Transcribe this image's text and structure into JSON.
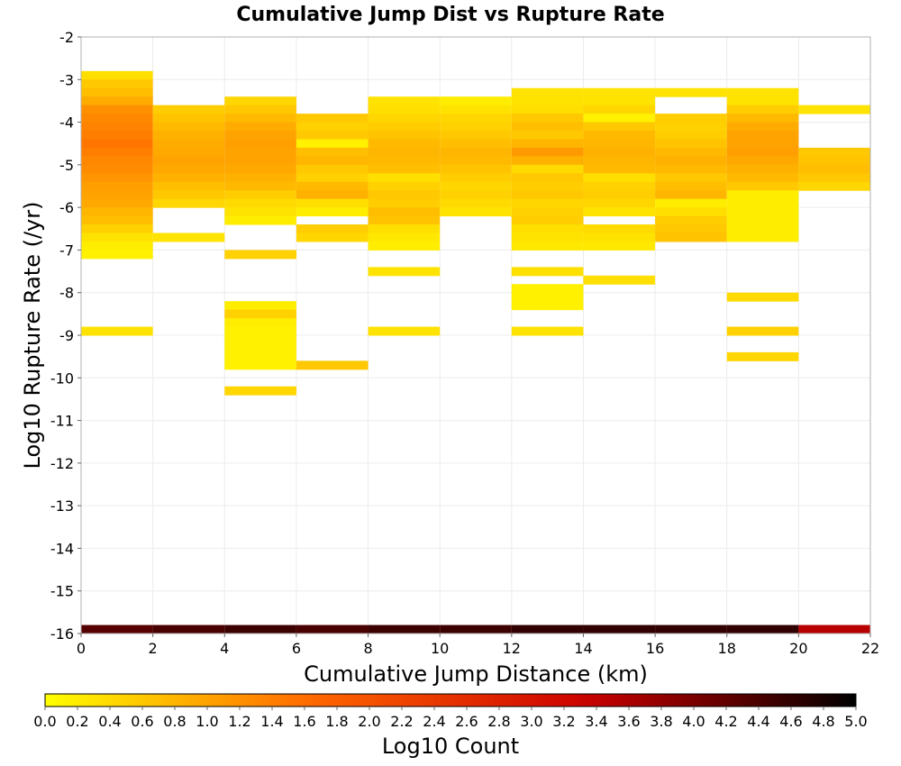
{
  "chart_data": {
    "type": "heatmap",
    "title": "Cumulative Jump Dist vs Rupture Rate",
    "xlabel": "Cumulative Jump Distance (km)",
    "ylabel": "Log10 Rupture Rate (/yr)",
    "xlim": [
      0,
      22
    ],
    "ylim": [
      -16,
      -2
    ],
    "x_ticks": [
      0,
      2,
      4,
      6,
      8,
      10,
      12,
      14,
      16,
      18,
      20,
      22
    ],
    "y_ticks": [
      -2,
      -3,
      -4,
      -5,
      -6,
      -7,
      -8,
      -9,
      -10,
      -11,
      -12,
      -13,
      -14,
      -15,
      -16
    ],
    "grid": true,
    "bin_width_x": 2,
    "bin_height_y": 0.2,
    "colorbar": {
      "label": "Log10 Count",
      "range": [
        0,
        5
      ],
      "ticks": [
        "0.0",
        "0.2",
        "0.4",
        "0.6",
        "0.8",
        "1.0",
        "1.2",
        "1.4",
        "1.6",
        "1.8",
        "2.0",
        "2.2",
        "2.4",
        "2.6",
        "2.8",
        "3.0",
        "3.2",
        "3.4",
        "3.6",
        "3.8",
        "4.0",
        "4.2",
        "4.4",
        "4.6",
        "4.8",
        "5.0"
      ],
      "colors": [
        "#ffff00",
        "#ff6600",
        "#cc0000",
        "#000000"
      ]
    },
    "cells_note": "each cell: x = bin left edge (km), y = bin bottom (log10 rate), v = log10 count",
    "cells": [
      {
        "x": 0,
        "y": -3.0,
        "v": 0.35
      },
      {
        "x": 0,
        "y": -3.2,
        "v": 0.6
      },
      {
        "x": 0,
        "y": -3.4,
        "v": 0.7
      },
      {
        "x": 0,
        "y": -3.6,
        "v": 0.9
      },
      {
        "x": 0,
        "y": -3.8,
        "v": 1.2
      },
      {
        "x": 0,
        "y": -4.0,
        "v": 1.3
      },
      {
        "x": 0,
        "y": -4.2,
        "v": 1.35
      },
      {
        "x": 0,
        "y": -4.4,
        "v": 1.4
      },
      {
        "x": 0,
        "y": -4.6,
        "v": 1.5
      },
      {
        "x": 0,
        "y": -4.8,
        "v": 1.4
      },
      {
        "x": 0,
        "y": -5.0,
        "v": 1.3
      },
      {
        "x": 0,
        "y": -5.2,
        "v": 1.25
      },
      {
        "x": 0,
        "y": -5.4,
        "v": 1.15
      },
      {
        "x": 0,
        "y": -5.6,
        "v": 1.05
      },
      {
        "x": 0,
        "y": -5.8,
        "v": 1.0
      },
      {
        "x": 0,
        "y": -6.0,
        "v": 0.95
      },
      {
        "x": 0,
        "y": -6.2,
        "v": 0.8
      },
      {
        "x": 0,
        "y": -6.4,
        "v": 0.7
      },
      {
        "x": 0,
        "y": -6.6,
        "v": 0.5
      },
      {
        "x": 0,
        "y": -6.8,
        "v": 0.3
      },
      {
        "x": 0,
        "y": -7.0,
        "v": 0.2
      },
      {
        "x": 0,
        "y": -7.2,
        "v": 0.15
      },
      {
        "x": 0,
        "y": -9.0,
        "v": 0.3
      },
      {
        "x": 2,
        "y": -3.8,
        "v": 0.55
      },
      {
        "x": 2,
        "y": -4.0,
        "v": 0.65
      },
      {
        "x": 2,
        "y": -4.2,
        "v": 0.75
      },
      {
        "x": 2,
        "y": -4.4,
        "v": 0.85
      },
      {
        "x": 2,
        "y": -4.6,
        "v": 0.9
      },
      {
        "x": 2,
        "y": -4.8,
        "v": 0.95
      },
      {
        "x": 2,
        "y": -5.0,
        "v": 1.0
      },
      {
        "x": 2,
        "y": -5.2,
        "v": 0.95
      },
      {
        "x": 2,
        "y": -5.4,
        "v": 0.85
      },
      {
        "x": 2,
        "y": -5.6,
        "v": 0.7
      },
      {
        "x": 2,
        "y": -5.8,
        "v": 0.6
      },
      {
        "x": 2,
        "y": -6.0,
        "v": 0.45
      },
      {
        "x": 2,
        "y": -6.8,
        "v": 0.3
      },
      {
        "x": 4,
        "y": -3.6,
        "v": 0.45
      },
      {
        "x": 4,
        "y": -3.8,
        "v": 0.6
      },
      {
        "x": 4,
        "y": -4.0,
        "v": 0.75
      },
      {
        "x": 4,
        "y": -4.2,
        "v": 0.9
      },
      {
        "x": 4,
        "y": -4.4,
        "v": 1.0
      },
      {
        "x": 4,
        "y": -4.6,
        "v": 1.05
      },
      {
        "x": 4,
        "y": -4.8,
        "v": 1.0
      },
      {
        "x": 4,
        "y": -5.0,
        "v": 1.0
      },
      {
        "x": 4,
        "y": -5.2,
        "v": 0.95
      },
      {
        "x": 4,
        "y": -5.4,
        "v": 0.85
      },
      {
        "x": 4,
        "y": -5.6,
        "v": 0.75
      },
      {
        "x": 4,
        "y": -5.8,
        "v": 0.55
      },
      {
        "x": 4,
        "y": -6.0,
        "v": 0.4
      },
      {
        "x": 4,
        "y": -6.2,
        "v": 0.3
      },
      {
        "x": 4,
        "y": -6.4,
        "v": 0.2
      },
      {
        "x": 4,
        "y": -7.2,
        "v": 0.5
      },
      {
        "x": 4,
        "y": -8.4,
        "v": 0.2
      },
      {
        "x": 4,
        "y": -8.6,
        "v": 0.5
      },
      {
        "x": 4,
        "y": -8.8,
        "v": 0.2
      },
      {
        "x": 4,
        "y": -9.0,
        "v": 0.15
      },
      {
        "x": 4,
        "y": -9.2,
        "v": 0.15
      },
      {
        "x": 4,
        "y": -9.4,
        "v": 0.15
      },
      {
        "x": 4,
        "y": -9.6,
        "v": 0.15
      },
      {
        "x": 4,
        "y": -9.8,
        "v": 0.15
      },
      {
        "x": 4,
        "y": -10.4,
        "v": 0.45
      },
      {
        "x": 6,
        "y": -4.0,
        "v": 0.6
      },
      {
        "x": 6,
        "y": -4.2,
        "v": 0.5
      },
      {
        "x": 6,
        "y": -4.4,
        "v": 0.6
      },
      {
        "x": 6,
        "y": -4.6,
        "v": 0.15
      },
      {
        "x": 6,
        "y": -4.8,
        "v": 0.7
      },
      {
        "x": 6,
        "y": -5.0,
        "v": 0.8
      },
      {
        "x": 6,
        "y": -5.2,
        "v": 0.6
      },
      {
        "x": 6,
        "y": -5.4,
        "v": 0.5
      },
      {
        "x": 6,
        "y": -5.6,
        "v": 0.75
      },
      {
        "x": 6,
        "y": -5.8,
        "v": 0.85
      },
      {
        "x": 6,
        "y": -6.0,
        "v": 0.35
      },
      {
        "x": 6,
        "y": -6.2,
        "v": 0.2
      },
      {
        "x": 6,
        "y": -6.6,
        "v": 0.55
      },
      {
        "x": 6,
        "y": -6.8,
        "v": 0.45
      },
      {
        "x": 6,
        "y": -9.8,
        "v": 0.6
      },
      {
        "x": 8,
        "y": -3.6,
        "v": 0.3
      },
      {
        "x": 8,
        "y": -3.8,
        "v": 0.35
      },
      {
        "x": 8,
        "y": -4.0,
        "v": 0.45
      },
      {
        "x": 8,
        "y": -4.2,
        "v": 0.55
      },
      {
        "x": 8,
        "y": -4.4,
        "v": 0.65
      },
      {
        "x": 8,
        "y": -4.6,
        "v": 0.75
      },
      {
        "x": 8,
        "y": -4.8,
        "v": 0.8
      },
      {
        "x": 8,
        "y": -5.0,
        "v": 0.75
      },
      {
        "x": 8,
        "y": -5.2,
        "v": 0.7
      },
      {
        "x": 8,
        "y": -5.4,
        "v": 0.35
      },
      {
        "x": 8,
        "y": -5.6,
        "v": 0.5
      },
      {
        "x": 8,
        "y": -5.8,
        "v": 0.6
      },
      {
        "x": 8,
        "y": -6.0,
        "v": 0.55
      },
      {
        "x": 8,
        "y": -6.2,
        "v": 0.7
      },
      {
        "x": 8,
        "y": -6.4,
        "v": 0.65
      },
      {
        "x": 8,
        "y": -6.6,
        "v": 0.35
      },
      {
        "x": 8,
        "y": -6.8,
        "v": 0.25
      },
      {
        "x": 8,
        "y": -7.0,
        "v": 0.2
      },
      {
        "x": 8,
        "y": -7.6,
        "v": 0.3
      },
      {
        "x": 8,
        "y": -9.0,
        "v": 0.3
      },
      {
        "x": 10,
        "y": -3.6,
        "v": 0.2
      },
      {
        "x": 10,
        "y": -3.8,
        "v": 0.3
      },
      {
        "x": 10,
        "y": -4.0,
        "v": 0.45
      },
      {
        "x": 10,
        "y": -4.2,
        "v": 0.5
      },
      {
        "x": 10,
        "y": -4.4,
        "v": 0.6
      },
      {
        "x": 10,
        "y": -4.6,
        "v": 0.7
      },
      {
        "x": 10,
        "y": -4.8,
        "v": 0.8
      },
      {
        "x": 10,
        "y": -5.0,
        "v": 0.75
      },
      {
        "x": 10,
        "y": -5.2,
        "v": 0.65
      },
      {
        "x": 10,
        "y": -5.4,
        "v": 0.55
      },
      {
        "x": 10,
        "y": -5.6,
        "v": 0.45
      },
      {
        "x": 10,
        "y": -5.8,
        "v": 0.5
      },
      {
        "x": 10,
        "y": -6.0,
        "v": 0.4
      },
      {
        "x": 10,
        "y": -6.2,
        "v": 0.3
      },
      {
        "x": 12,
        "y": -3.4,
        "v": 0.3
      },
      {
        "x": 12,
        "y": -3.6,
        "v": 0.3
      },
      {
        "x": 12,
        "y": -3.8,
        "v": 0.35
      },
      {
        "x": 12,
        "y": -4.0,
        "v": 0.6
      },
      {
        "x": 12,
        "y": -4.2,
        "v": 0.7
      },
      {
        "x": 12,
        "y": -4.4,
        "v": 0.6
      },
      {
        "x": 12,
        "y": -4.6,
        "v": 0.8
      },
      {
        "x": 12,
        "y": -4.8,
        "v": 1.1
      },
      {
        "x": 12,
        "y": -5.0,
        "v": 0.85
      },
      {
        "x": 12,
        "y": -5.2,
        "v": 0.4
      },
      {
        "x": 12,
        "y": -5.4,
        "v": 0.6
      },
      {
        "x": 12,
        "y": -5.6,
        "v": 0.55
      },
      {
        "x": 12,
        "y": -5.8,
        "v": 0.6
      },
      {
        "x": 12,
        "y": -6.0,
        "v": 0.45
      },
      {
        "x": 12,
        "y": -6.2,
        "v": 0.5
      },
      {
        "x": 12,
        "y": -6.4,
        "v": 0.55
      },
      {
        "x": 12,
        "y": -6.6,
        "v": 0.35
      },
      {
        "x": 12,
        "y": -6.8,
        "v": 0.3
      },
      {
        "x": 12,
        "y": -7.0,
        "v": 0.25
      },
      {
        "x": 12,
        "y": -7.6,
        "v": 0.35
      },
      {
        "x": 12,
        "y": -8.0,
        "v": 0.15
      },
      {
        "x": 12,
        "y": -8.2,
        "v": 0.15
      },
      {
        "x": 12,
        "y": -8.4,
        "v": 0.15
      },
      {
        "x": 12,
        "y": -9.0,
        "v": 0.3
      },
      {
        "x": 14,
        "y": -3.4,
        "v": 0.3
      },
      {
        "x": 14,
        "y": -3.6,
        "v": 0.3
      },
      {
        "x": 14,
        "y": -3.8,
        "v": 0.45
      },
      {
        "x": 14,
        "y": -4.0,
        "v": 0.15
      },
      {
        "x": 14,
        "y": -4.2,
        "v": 0.6
      },
      {
        "x": 14,
        "y": -4.4,
        "v": 0.75
      },
      {
        "x": 14,
        "y": -4.6,
        "v": 0.8
      },
      {
        "x": 14,
        "y": -4.8,
        "v": 0.85
      },
      {
        "x": 14,
        "y": -5.0,
        "v": 0.8
      },
      {
        "x": 14,
        "y": -5.2,
        "v": 0.75
      },
      {
        "x": 14,
        "y": -5.4,
        "v": 0.35
      },
      {
        "x": 14,
        "y": -5.6,
        "v": 0.5
      },
      {
        "x": 14,
        "y": -5.8,
        "v": 0.55
      },
      {
        "x": 14,
        "y": -6.0,
        "v": 0.45
      },
      {
        "x": 14,
        "y": -6.2,
        "v": 0.3
      },
      {
        "x": 14,
        "y": -6.6,
        "v": 0.4
      },
      {
        "x": 14,
        "y": -6.8,
        "v": 0.3
      },
      {
        "x": 14,
        "y": -7.0,
        "v": 0.25
      },
      {
        "x": 14,
        "y": -7.8,
        "v": 0.35
      },
      {
        "x": 16,
        "y": -3.4,
        "v": 0.3
      },
      {
        "x": 16,
        "y": -4.0,
        "v": 0.55
      },
      {
        "x": 16,
        "y": -4.2,
        "v": 0.5
      },
      {
        "x": 16,
        "y": -4.4,
        "v": 0.55
      },
      {
        "x": 16,
        "y": -4.6,
        "v": 0.65
      },
      {
        "x": 16,
        "y": -4.8,
        "v": 0.75
      },
      {
        "x": 16,
        "y": -5.0,
        "v": 0.85
      },
      {
        "x": 16,
        "y": -5.2,
        "v": 0.75
      },
      {
        "x": 16,
        "y": -5.4,
        "v": 0.6
      },
      {
        "x": 16,
        "y": -5.6,
        "v": 0.7
      },
      {
        "x": 16,
        "y": -5.8,
        "v": 0.8
      },
      {
        "x": 16,
        "y": -6.0,
        "v": 0.2
      },
      {
        "x": 16,
        "y": -6.2,
        "v": 0.35
      },
      {
        "x": 16,
        "y": -6.4,
        "v": 0.55
      },
      {
        "x": 16,
        "y": -6.6,
        "v": 0.6
      },
      {
        "x": 16,
        "y": -6.8,
        "v": 0.65
      },
      {
        "x": 18,
        "y": -3.4,
        "v": 0.3
      },
      {
        "x": 18,
        "y": -3.6,
        "v": 0.3
      },
      {
        "x": 18,
        "y": -3.8,
        "v": 0.55
      },
      {
        "x": 18,
        "y": -4.0,
        "v": 0.75
      },
      {
        "x": 18,
        "y": -4.2,
        "v": 0.9
      },
      {
        "x": 18,
        "y": -4.4,
        "v": 1.0
      },
      {
        "x": 18,
        "y": -4.6,
        "v": 1.0
      },
      {
        "x": 18,
        "y": -4.8,
        "v": 1.05
      },
      {
        "x": 18,
        "y": -5.0,
        "v": 0.95
      },
      {
        "x": 18,
        "y": -5.2,
        "v": 0.85
      },
      {
        "x": 18,
        "y": -5.4,
        "v": 0.75
      },
      {
        "x": 18,
        "y": -5.6,
        "v": 0.6
      },
      {
        "x": 18,
        "y": -5.8,
        "v": 0.2
      },
      {
        "x": 18,
        "y": -6.0,
        "v": 0.2
      },
      {
        "x": 18,
        "y": -6.2,
        "v": 0.2
      },
      {
        "x": 18,
        "y": -6.4,
        "v": 0.2
      },
      {
        "x": 18,
        "y": -6.6,
        "v": 0.2
      },
      {
        "x": 18,
        "y": -6.8,
        "v": 0.2
      },
      {
        "x": 18,
        "y": -8.2,
        "v": 0.4
      },
      {
        "x": 18,
        "y": -9.0,
        "v": 0.5
      },
      {
        "x": 18,
        "y": -9.6,
        "v": 0.45
      },
      {
        "x": 20,
        "y": -3.8,
        "v": 0.3
      },
      {
        "x": 20,
        "y": -4.8,
        "v": 0.6
      },
      {
        "x": 20,
        "y": -5.0,
        "v": 0.65
      },
      {
        "x": 20,
        "y": -5.2,
        "v": 0.7
      },
      {
        "x": 20,
        "y": -5.4,
        "v": 0.6
      },
      {
        "x": 20,
        "y": -5.6,
        "v": 0.45
      }
    ],
    "bottom_row": {
      "y": -16.0,
      "x_values": [
        0,
        2,
        4,
        6,
        8,
        10,
        12,
        14,
        16,
        18,
        20
      ],
      "values": [
        4.3,
        4.4,
        4.5,
        4.4,
        4.5,
        4.5,
        4.6,
        4.6,
        4.6,
        4.6,
        3.5
      ]
    }
  }
}
